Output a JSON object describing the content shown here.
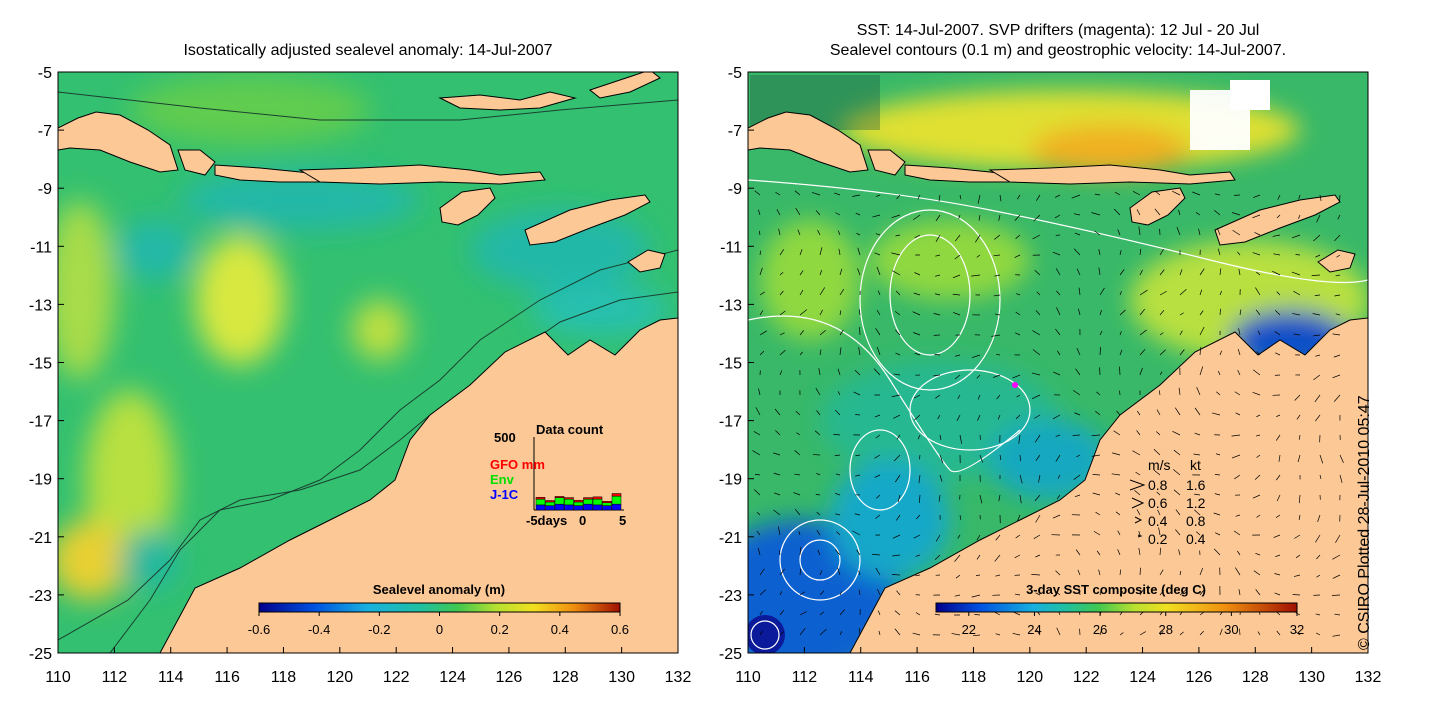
{
  "left_panel": {
    "title": "Isostatically adjusted sealevel anomaly: 14-Jul-2007",
    "colorbar": {
      "label": "Sealevel anomaly (m)",
      "ticks": [
        "-0.6",
        "-0.4",
        "-0.2",
        "0",
        "0.2",
        "0.4",
        "0.6"
      ],
      "range": [
        -0.6,
        0.6
      ]
    },
    "inset": {
      "title": "Data count",
      "y_max_label": "500",
      "x_ticks": [
        "-5days",
        "0",
        "5"
      ],
      "legend": [
        {
          "name": "GFO mm",
          "color": "#ff0000"
        },
        {
          "name": "Env",
          "color": "#00ff00"
        },
        {
          "name": "J-1C",
          "color": "#0000ff"
        }
      ],
      "bars": [
        {
          "j1c": 35,
          "env": 40,
          "gfo": 12
        },
        {
          "j1c": 30,
          "env": 25,
          "gfo": 10
        },
        {
          "j1c": 40,
          "env": 45,
          "gfo": 8
        },
        {
          "j1c": 35,
          "env": 40,
          "gfo": 10
        },
        {
          "j1c": 30,
          "env": 25,
          "gfo": 12
        },
        {
          "j1c": 40,
          "env": 35,
          "gfo": 10
        },
        {
          "j1c": 35,
          "env": 40,
          "gfo": 15
        },
        {
          "j1c": 30,
          "env": 20,
          "gfo": 10
        },
        {
          "j1c": 40,
          "env": 55,
          "gfo": 18
        }
      ]
    }
  },
  "right_panel": {
    "title_line1": "SST: 14-Jul-2007. SVP drifters (magenta): 12 Jul - 20 Jul",
    "title_line2": "Sealevel contours (0.1 m) and geostrophic velocity: 14-Jul-2007.",
    "colorbar": {
      "label": "3-day SST composite (deg C)",
      "ticks": [
        "22",
        "24",
        "26",
        "28",
        "30",
        "32"
      ],
      "range": [
        21,
        32
      ]
    },
    "velocity_legend": {
      "header_ms": "m/s",
      "header_kt": "kt",
      "rows": [
        {
          "ms": "0.8",
          "kt": "1.6"
        },
        {
          "ms": "0.6",
          "kt": "1.2"
        },
        {
          "ms": "0.4",
          "kt": "0.8"
        },
        {
          "ms": "0.2",
          "kt": "0.4"
        }
      ]
    }
  },
  "axes": {
    "x_ticks": [
      "110",
      "112",
      "114",
      "116",
      "118",
      "120",
      "122",
      "124",
      "126",
      "128",
      "130",
      "132"
    ],
    "y_ticks": [
      "-5",
      "-7",
      "-9",
      "-11",
      "-13",
      "-15",
      "-17",
      "-19",
      "-21",
      "-23",
      "-25"
    ],
    "lon_range": [
      110,
      132
    ],
    "lat_range": [
      -5,
      -25
    ]
  },
  "credit": "© CSIRO Plotted 28-Jul-2010 05:47",
  "colors": {
    "land": "#fcc896",
    "ocean_base": "#33c070",
    "sla_high": "#d8e840",
    "sst_warm": "#e0e030",
    "sst_cool": "#1060d0"
  }
}
